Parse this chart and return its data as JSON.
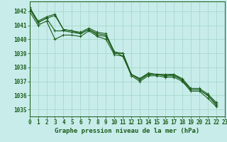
{
  "title": "Graphe pression niveau de la mer (hPa)",
  "bg_color": "#c8ecea",
  "grid_color": "#a8d8cc",
  "line_color": "#1a5c1a",
  "xlim": [
    0,
    23
  ],
  "ylim": [
    1034.5,
    1042.7
  ],
  "yticks": [
    1035,
    1036,
    1037,
    1038,
    1039,
    1040,
    1041,
    1042
  ],
  "xticks": [
    0,
    1,
    2,
    3,
    4,
    5,
    6,
    7,
    8,
    9,
    10,
    11,
    12,
    13,
    14,
    15,
    16,
    17,
    18,
    19,
    20,
    21,
    22,
    23
  ],
  "series": [
    [
      1042.3,
      1041.3,
      1041.6,
      1041.8,
      1040.7,
      1040.6,
      1040.5,
      1040.8,
      1040.5,
      1040.4,
      1039.1,
      1039.0,
      1037.5,
      1037.2,
      1037.6,
      1037.5,
      1037.5,
      1037.5,
      1037.2,
      1036.5,
      1036.5,
      1036.1,
      1035.5
    ],
    [
      1042.2,
      1041.2,
      1041.5,
      1040.6,
      1040.6,
      1040.5,
      1040.4,
      1040.7,
      1040.3,
      1040.2,
      1039.1,
      1038.8,
      1037.5,
      1037.2,
      1037.5,
      1037.5,
      1037.4,
      1037.4,
      1037.1,
      1036.4,
      1036.4,
      1036.0,
      1035.4
    ],
    [
      1042.2,
      1041.2,
      1041.5,
      1041.7,
      1040.7,
      1040.6,
      1040.4,
      1040.7,
      1040.4,
      1040.3,
      1039.0,
      1039.0,
      1037.5,
      1037.1,
      1037.5,
      1037.5,
      1037.4,
      1037.5,
      1037.1,
      1036.4,
      1036.4,
      1036.0,
      1035.3
    ],
    [
      1042.0,
      1041.0,
      1041.3,
      1040.0,
      1040.3,
      1040.3,
      1040.2,
      1040.6,
      1040.2,
      1040.0,
      1038.9,
      1038.8,
      1037.4,
      1037.0,
      1037.4,
      1037.4,
      1037.3,
      1037.3,
      1037.0,
      1036.3,
      1036.3,
      1035.8,
      1035.2
    ]
  ],
  "title_fontsize": 6.5,
  "tick_fontsize": 5.5
}
